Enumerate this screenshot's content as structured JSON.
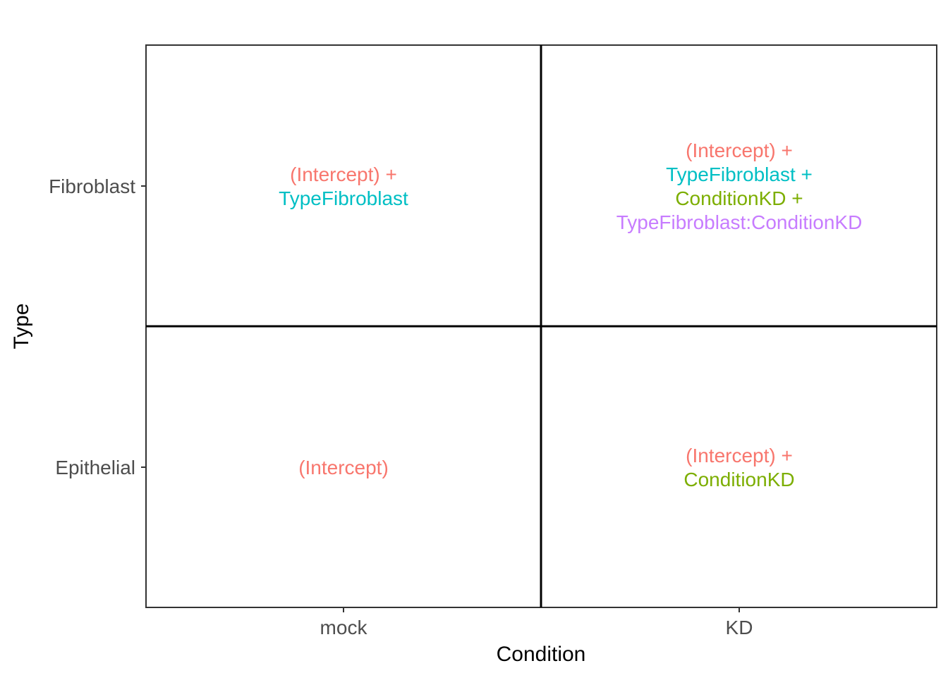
{
  "diagram": {
    "x_axis": {
      "title": "Condition",
      "ticks": [
        "mock",
        "KD"
      ]
    },
    "y_axis": {
      "title": "Type",
      "ticks": [
        "Fibroblast",
        "Epithelial"
      ]
    },
    "colors": {
      "intercept": "#F8766D",
      "type_fibroblast": "#00BFC4",
      "condition_kd": "#7CAE00",
      "interaction": "#C77CFF",
      "frame": "#333333",
      "divider": "#000000"
    },
    "cells": [
      {
        "id": "fibroblast-mock",
        "col": 0,
        "row": 0,
        "lines": [
          {
            "text": "(Intercept) +",
            "color_key": "intercept"
          },
          {
            "text": "TypeFibroblast",
            "color_key": "type_fibroblast"
          }
        ]
      },
      {
        "id": "fibroblast-kd",
        "col": 1,
        "row": 0,
        "lines": [
          {
            "text": "(Intercept) +",
            "color_key": "intercept"
          },
          {
            "text": "TypeFibroblast +",
            "color_key": "type_fibroblast"
          },
          {
            "text": "ConditionKD +",
            "color_key": "condition_kd"
          },
          {
            "text": "TypeFibroblast:ConditionKD",
            "color_key": "interaction"
          }
        ]
      },
      {
        "id": "epithelial-mock",
        "col": 0,
        "row": 1,
        "lines": [
          {
            "text": "(Intercept)",
            "color_key": "intercept"
          }
        ]
      },
      {
        "id": "epithelial-kd",
        "col": 1,
        "row": 1,
        "lines": [
          {
            "text": "(Intercept) +",
            "color_key": "intercept"
          },
          {
            "text": "ConditionKD",
            "color_key": "condition_kd"
          }
        ]
      }
    ]
  }
}
